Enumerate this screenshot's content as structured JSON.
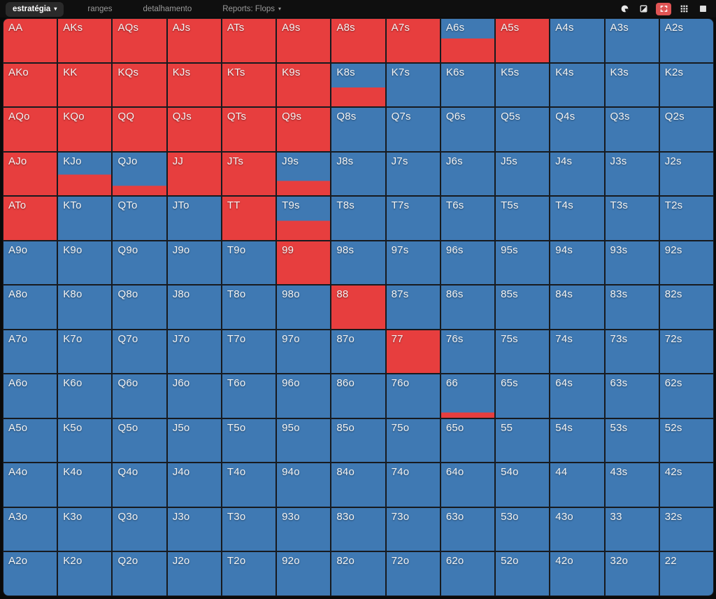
{
  "topbar": {
    "tabs": [
      {
        "label": "estratégia",
        "active": true,
        "caret": "▾"
      },
      {
        "label": "ranges",
        "active": false,
        "caret": ""
      },
      {
        "label": "detalhamento",
        "active": false,
        "caret": ""
      },
      {
        "label": "Reports: Flops",
        "active": false,
        "caret": "▾"
      }
    ],
    "icons": [
      "contrast-circle",
      "diagonal-split-square",
      "expand-brackets",
      "grid-view",
      "filled-square"
    ],
    "active_icon": "expand-brackets"
  },
  "colors": {
    "raise": "#e73e3e",
    "call": "#3f79b3",
    "grid_line": "#171a1f",
    "topbar_bg": "#0f0f0f",
    "active_tab_bg": "#2a2a2a",
    "active_icon_bg": "#e05454"
  },
  "grid": {
    "rows": 13,
    "cols": 13,
    "legend": {
      "red": "raise",
      "blue": "call"
    },
    "hands": [
      [
        "AA",
        "AKs",
        "AQs",
        "AJs",
        "ATs",
        "A9s",
        "A8s",
        "A7s",
        "A6s",
        "A5s",
        "A4s",
        "A3s",
        "A2s"
      ],
      [
        "AKo",
        "KK",
        "KQs",
        "KJs",
        "KTs",
        "K9s",
        "K8s",
        "K7s",
        "K6s",
        "K5s",
        "K4s",
        "K3s",
        "K2s"
      ],
      [
        "AQo",
        "KQo",
        "QQ",
        "QJs",
        "QTs",
        "Q9s",
        "Q8s",
        "Q7s",
        "Q6s",
        "Q5s",
        "Q4s",
        "Q3s",
        "Q2s"
      ],
      [
        "AJo",
        "KJo",
        "QJo",
        "JJ",
        "JTs",
        "J9s",
        "J8s",
        "J7s",
        "J6s",
        "J5s",
        "J4s",
        "J3s",
        "J2s"
      ],
      [
        "ATo",
        "KTo",
        "QTo",
        "JTo",
        "TT",
        "T9s",
        "T8s",
        "T7s",
        "T6s",
        "T5s",
        "T4s",
        "T3s",
        "T2s"
      ],
      [
        "A9o",
        "K9o",
        "Q9o",
        "J9o",
        "T9o",
        "99",
        "98s",
        "97s",
        "96s",
        "95s",
        "94s",
        "93s",
        "92s"
      ],
      [
        "A8o",
        "K8o",
        "Q8o",
        "J8o",
        "T8o",
        "98o",
        "88",
        "87s",
        "86s",
        "85s",
        "84s",
        "83s",
        "82s"
      ],
      [
        "A7o",
        "K7o",
        "Q7o",
        "J7o",
        "T7o",
        "97o",
        "87o",
        "77",
        "76s",
        "75s",
        "74s",
        "73s",
        "72s"
      ],
      [
        "A6o",
        "K6o",
        "Q6o",
        "J6o",
        "T6o",
        "96o",
        "86o",
        "76o",
        "66",
        "65s",
        "64s",
        "63s",
        "62s"
      ],
      [
        "A5o",
        "K5o",
        "Q5o",
        "J5o",
        "T5o",
        "95o",
        "85o",
        "75o",
        "65o",
        "55",
        "54s",
        "53s",
        "52s"
      ],
      [
        "A4o",
        "K4o",
        "Q4o",
        "J4o",
        "T4o",
        "94o",
        "84o",
        "74o",
        "64o",
        "54o",
        "44",
        "43s",
        "42s"
      ],
      [
        "A3o",
        "K3o",
        "Q3o",
        "J3o",
        "T3o",
        "93o",
        "83o",
        "73o",
        "63o",
        "53o",
        "43o",
        "33",
        "32s"
      ],
      [
        "A2o",
        "K2o",
        "Q2o",
        "J2o",
        "T2o",
        "92o",
        "82o",
        "72o",
        "62o",
        "52o",
        "42o",
        "32o",
        "22"
      ]
    ],
    "full_raise_hands": [
      "AA",
      "AKs",
      "AQs",
      "AJs",
      "ATs",
      "A9s",
      "A8s",
      "A7s",
      "A5s",
      "AKo",
      "KK",
      "KQs",
      "KJs",
      "KTs",
      "K9s",
      "AQo",
      "KQo",
      "QQ",
      "QJs",
      "QTs",
      "Q9s",
      "AJo",
      "JJ",
      "JTs",
      "ATo",
      "TT",
      "99",
      "88",
      "77"
    ],
    "split_raise_fraction": {
      "A6s": 0.55,
      "K8s": 0.44,
      "KJo": 0.48,
      "QJo": 0.22,
      "J9s": 0.34,
      "T9s": 0.44,
      "66": 0.12
    }
  }
}
